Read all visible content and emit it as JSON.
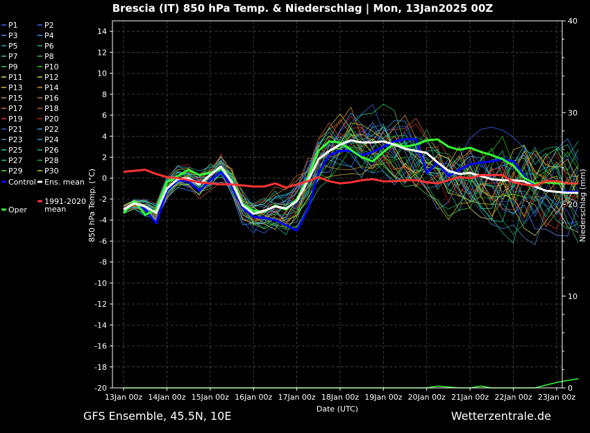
{
  "chart_data": {
    "type": "line",
    "title": "Brescia  (IT)  850 hPa Temp. & Niederschlag | Mon, 13Jan2025 00Z",
    "xlabel": "Date (UTC)",
    "ylabel": "850 hPa Temp. (°C)",
    "ylabel_right": "Niederschlag (mm)",
    "ylim": [
      -20,
      15
    ],
    "ylim_right": [
      0,
      40
    ],
    "yticks": [
      "14",
      "12",
      "10",
      "8",
      "6",
      "4",
      "2",
      "0",
      "-2",
      "-4",
      "-6",
      "-8",
      "-10",
      "-12",
      "-14",
      "-16",
      "-18",
      "-20"
    ],
    "yticks_right": [
      "40",
      "30",
      "20",
      "10",
      "0"
    ],
    "x_tick_labels": [
      "13Jan 00z",
      "14Jan 00z",
      "15Jan 00z",
      "16Jan 00z",
      "17Jan 00z",
      "18Jan 00z",
      "19Jan 00z",
      "20Jan 00z",
      "21Jan 00z",
      "22Jan 00z",
      "23Jan 00z"
    ],
    "grid": true,
    "legend_position": "left",
    "legend": [
      {
        "name": "P1",
        "color": "#3a6cff"
      },
      {
        "name": "P2",
        "color": "#3a6cff"
      },
      {
        "name": "P3",
        "color": "#6688ff"
      },
      {
        "name": "P4",
        "color": "#3399ff"
      },
      {
        "name": "P5",
        "color": "#22aabb"
      },
      {
        "name": "P6",
        "color": "#22bb88"
      },
      {
        "name": "P7",
        "color": "#33cc99"
      },
      {
        "name": "P8",
        "color": "#33bb66"
      },
      {
        "name": "P9",
        "color": "#44dd55"
      },
      {
        "name": "P10",
        "color": "#22cc22"
      },
      {
        "name": "P11",
        "color": "#dddd66"
      },
      {
        "name": "P12",
        "color": "#cccc44"
      },
      {
        "name": "P13",
        "color": "#ddbb33"
      },
      {
        "name": "P14",
        "color": "#dd9922"
      },
      {
        "name": "P15",
        "color": "#cc8844"
      },
      {
        "name": "P16",
        "color": "#bb7733"
      },
      {
        "name": "P17",
        "color": "#dd6633"
      },
      {
        "name": "P18",
        "color": "#cc5544"
      },
      {
        "name": "P19",
        "color": "#dd3333"
      },
      {
        "name": "P20",
        "color": "#bb2222"
      },
      {
        "name": "P21",
        "color": "#3366dd"
      },
      {
        "name": "P22",
        "color": "#4499ee"
      },
      {
        "name": "P23",
        "color": "#5588cc"
      },
      {
        "name": "P24",
        "color": "#33aacc"
      },
      {
        "name": "P25",
        "color": "#22ccaa"
      },
      {
        "name": "P26",
        "color": "#22bb99"
      },
      {
        "name": "P27",
        "color": "#33cc77"
      },
      {
        "name": "P28",
        "color": "#22aa55"
      },
      {
        "name": "P29",
        "color": "#66ee44"
      },
      {
        "name": "P30",
        "color": "#cccc33"
      },
      {
        "name": "Control",
        "color": "#0000ff"
      },
      {
        "name": "Ens. mean",
        "color": "#ffffff"
      },
      {
        "name": "Oper",
        "color": "#33ff33"
      },
      {
        "name": "1991-2020 mean",
        "color": "#ff3333"
      }
    ],
    "x": [
      0,
      0.25,
      0.5,
      0.75,
      1,
      1.25,
      1.5,
      1.75,
      2,
      2.25,
      2.5,
      2.75,
      3,
      3.25,
      3.5,
      3.75,
      4,
      4.25,
      4.5,
      4.75,
      5,
      5.25,
      5.5,
      5.75,
      6,
      6.25,
      6.5,
      6.75,
      7,
      7.25,
      7.5,
      7.75,
      8,
      8.25,
      8.5,
      8.75,
      9,
      9.25,
      9.5,
      9.75,
      10,
      10.25,
      10.5
    ],
    "series": [
      {
        "name": "Control",
        "color": "#0000ff",
        "width": 3,
        "values": [
          -3.2,
          -2.3,
          -3.0,
          -4.3,
          -1.2,
          -0.2,
          -0.3,
          -1.2,
          -0.2,
          0.6,
          -0.8,
          -2.8,
          -3.7,
          -3.8,
          -4.0,
          -4.5,
          -5.0,
          -3.0,
          0.5,
          2.2,
          2.6,
          2.6,
          2.2,
          2.5,
          3.0,
          3.5,
          3.7,
          3.7,
          0.5,
          1.5,
          0.2,
          0.8,
          1.3,
          1.5,
          1.6,
          1.8,
          1.6,
          0.2,
          -0.8,
          -1.2,
          -1.3,
          -1.3,
          -1.3
        ]
      },
      {
        "name": "Oper",
        "color": "#33ff33",
        "width": 3,
        "values": [
          -3.3,
          -2.2,
          -3.5,
          -3.0,
          -0.4,
          0.2,
          0.8,
          0.3,
          0.5,
          0.9,
          -0.3,
          -2.5,
          -3.1,
          -3.2,
          -2.6,
          -3.0,
          -2.0,
          0.0,
          2.6,
          3.5,
          3.4,
          2.7,
          2.0,
          1.6,
          2.5,
          3.3,
          3.0,
          3.2,
          3.6,
          3.7,
          3.0,
          2.7,
          2.9,
          2.5,
          2.2,
          1.8,
          1.2,
          0.0,
          -0.5,
          -0.4,
          -0.5,
          -0.5,
          -0.5
        ]
      },
      {
        "name": "Ens. mean",
        "color": "#ffffff",
        "width": 3,
        "values": [
          -3.0,
          -2.4,
          -2.7,
          -3.3,
          -1.0,
          -0.1,
          0.0,
          -0.6,
          0.3,
          1.1,
          -0.4,
          -2.6,
          -3.4,
          -3.1,
          -2.7,
          -2.9,
          -2.2,
          -0.3,
          1.8,
          2.6,
          3.2,
          3.6,
          3.4,
          3.4,
          3.5,
          3.2,
          2.8,
          2.6,
          2.4,
          1.5,
          0.7,
          0.4,
          0.5,
          0.2,
          -0.1,
          -0.2,
          -0.2,
          -0.3,
          -0.8,
          -1.2,
          -1.3,
          -1.4,
          -1.4
        ]
      },
      {
        "name": "1991-2020 mean",
        "color": "#ff3333",
        "width": 3,
        "values": [
          0.6,
          0.7,
          0.8,
          0.4,
          0.1,
          0.0,
          -0.2,
          -0.4,
          -0.5,
          -0.6,
          -0.6,
          -0.7,
          -0.8,
          -0.8,
          -0.5,
          -0.9,
          -0.6,
          -0.3,
          0.1,
          -0.3,
          -0.5,
          -0.4,
          -0.2,
          -0.1,
          -0.3,
          -0.3,
          -0.2,
          -0.2,
          -0.4,
          -0.5,
          -0.2,
          0.1,
          0.0,
          0.3,
          0.3,
          0.3,
          -0.4,
          -0.6,
          -0.7,
          -0.3,
          -0.3,
          -0.5,
          -0.5
        ]
      }
    ],
    "precip": [
      0,
      0,
      0,
      0,
      0,
      0,
      0,
      0,
      0,
      0,
      0,
      0,
      0,
      0,
      0,
      0,
      0,
      0,
      0,
      0,
      0,
      0,
      0,
      0,
      0,
      0,
      0,
      0,
      0,
      0.2,
      0.1,
      0,
      0,
      0.2,
      0,
      0,
      0,
      0,
      0,
      0.3,
      0.6,
      0.8,
      1.0
    ]
  },
  "footer": {
    "left": "GFS Ensemble, 45.5N, 10E",
    "right": "Wetterzentrale.de"
  }
}
